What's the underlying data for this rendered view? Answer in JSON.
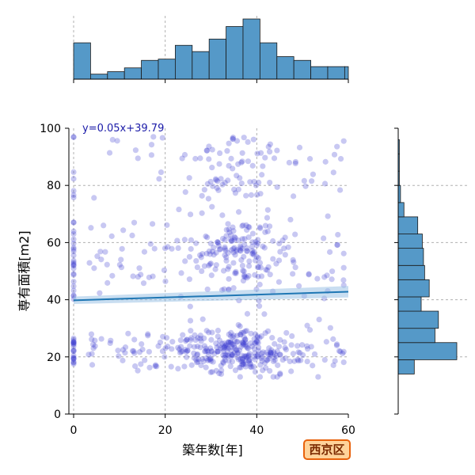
{
  "chart_data": {
    "type": "scatter",
    "xlabel": "築年数[年]",
    "ylabel": "専有面積[m2]",
    "xlim": [
      0,
      60
    ],
    "ylim": [
      0,
      100
    ],
    "xticks": [
      "0",
      "20",
      "40",
      "60"
    ],
    "yticks": [
      "0",
      "20",
      "40",
      "60",
      "80",
      "100"
    ],
    "grid": true,
    "regression": {
      "slope": 0.05,
      "intercept": 39.79,
      "label": "y=0.05x+39.79"
    },
    "point_color": "#3a3acf",
    "point_count_approx": 750,
    "x_marginal_hist": {
      "bin_width": 3.7,
      "counts": [
        29,
        4,
        6,
        9,
        15,
        16,
        27,
        22,
        32,
        42,
        48,
        29,
        18,
        15,
        10,
        10,
        10,
        5
      ]
    },
    "y_marginal_hist": {
      "bins": [
        [
          14,
          19,
          14
        ],
        [
          19,
          25,
          51
        ],
        [
          25,
          30,
          32
        ],
        [
          30,
          36,
          35
        ],
        [
          36,
          41,
          20
        ],
        [
          41,
          47,
          27
        ],
        [
          47,
          52,
          23
        ],
        [
          52,
          58,
          22
        ],
        [
          58,
          63,
          21
        ],
        [
          63,
          69,
          17
        ],
        [
          69,
          74,
          5
        ],
        [
          74,
          80,
          2
        ],
        [
          80,
          85,
          1
        ],
        [
          85,
          91,
          1
        ],
        [
          91,
          96,
          1
        ]
      ]
    },
    "hist_color": "#5599c8"
  },
  "region_badge": "西京区"
}
